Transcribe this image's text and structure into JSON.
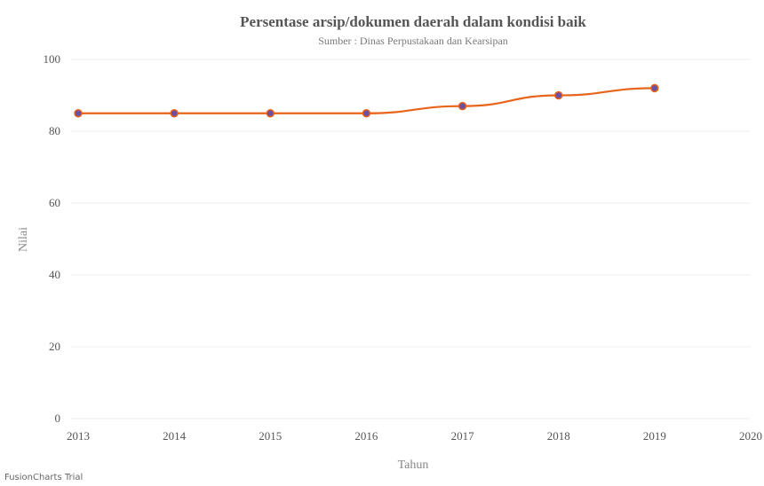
{
  "chart_data": {
    "type": "line",
    "title": "Persentase arsip/dokumen daerah dalam kondisi baik",
    "subtitle": "Sumber : Dinas Perpustakaan dan Kearsipan",
    "xlabel": "Tahun",
    "ylabel": "Nilai",
    "xlim": [
      2013,
      2020
    ],
    "ylim": [
      0,
      100
    ],
    "x_ticks": [
      "2013",
      "2014",
      "2015",
      "2016",
      "2017",
      "2018",
      "2019",
      "2020"
    ],
    "y_ticks": [
      "0",
      "20",
      "40",
      "60",
      "80",
      "100"
    ],
    "grid": true,
    "series": [
      {
        "x": [
          2013,
          2014,
          2015,
          2016,
          2017,
          2018,
          2019
        ],
        "values": [
          85,
          85,
          85,
          85,
          87,
          90,
          92
        ]
      }
    ],
    "colors": {
      "line": "#e8641b",
      "marker": "#6a4fa3"
    }
  },
  "watermark": "FusionCharts Trial"
}
